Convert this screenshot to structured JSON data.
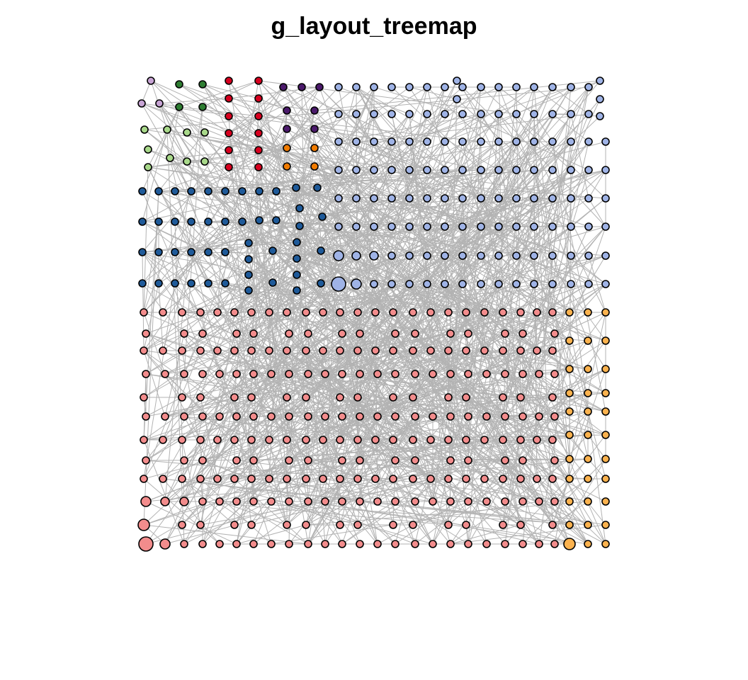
{
  "title": "g_layout_treemap",
  "colors": {
    "edge": "#b3b3b3",
    "node_stroke": "#000000",
    "lavender": "#c7a4d4",
    "dark-green": "#2e7d32",
    "red": "#d7001f",
    "purple": "#4b1a6b",
    "orange": "#f07b00",
    "light-green": "#a8d88a",
    "blue": "#1f5a99",
    "periwinkle": "#9fb3e6",
    "salmon": "#f28c8c",
    "peach": "#fbb24e"
  }
}
